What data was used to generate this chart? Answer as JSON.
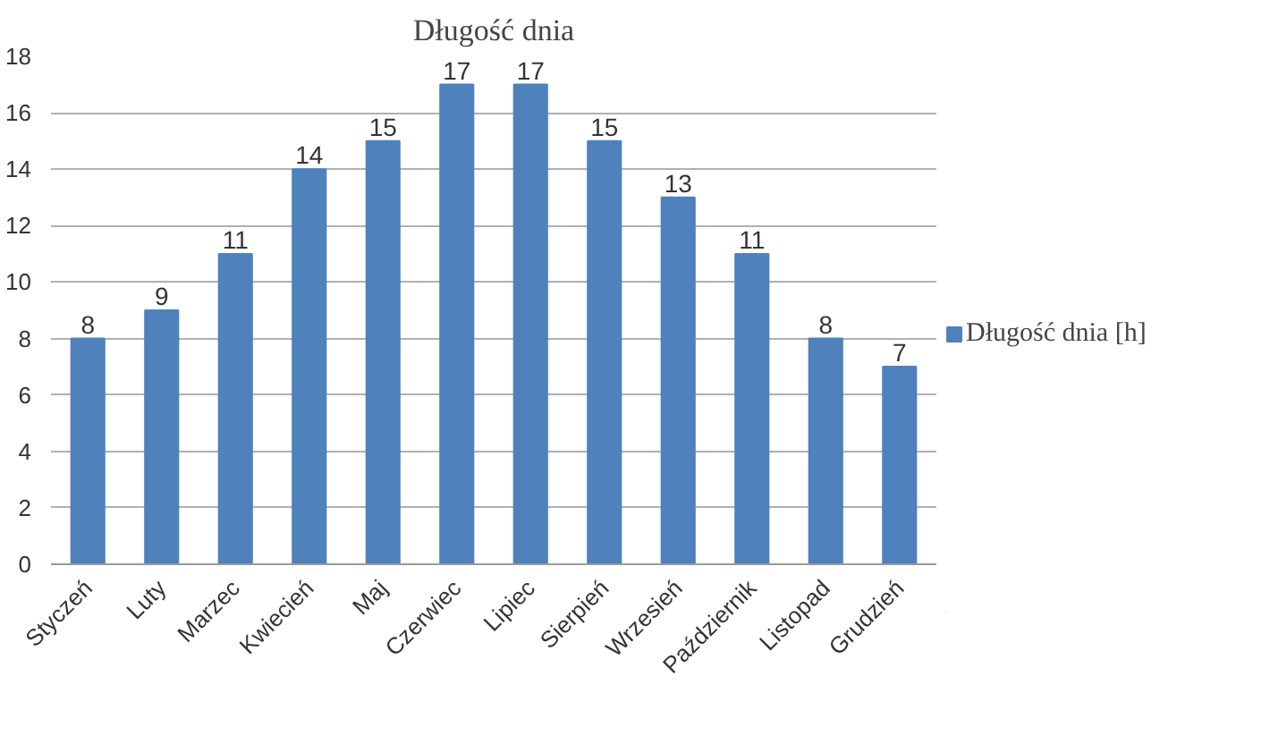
{
  "chart_data": {
    "type": "bar",
    "title": "Długość dnia",
    "categories": [
      "Styczeń",
      "Luty",
      "Marzec",
      "Kwiecień",
      "Maj",
      "Czerwiec",
      "Lipiec",
      "Sierpień",
      "Wrzesień",
      "Październik",
      "Listopad",
      "Grudzień"
    ],
    "series": [
      {
        "name": "Długość dnia [h]",
        "color": "#4f81bd",
        "values": [
          8,
          9,
          11,
          14,
          15,
          17,
          17,
          15,
          13,
          11,
          8,
          7
        ]
      }
    ],
    "ylim": [
      0,
      18
    ],
    "yticks": [
      0,
      2,
      4,
      6,
      8,
      10,
      12,
      14,
      16,
      18
    ],
    "grid": "y",
    "legend": "right",
    "data_labels": true
  }
}
